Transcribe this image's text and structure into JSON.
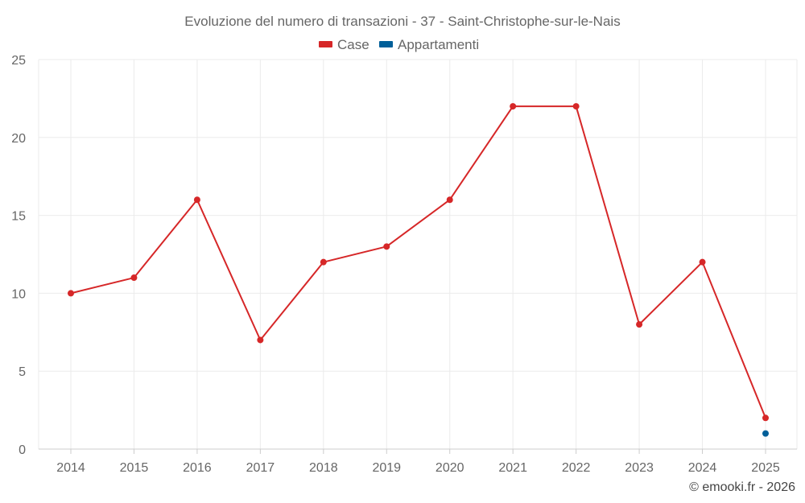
{
  "chart_data": {
    "type": "line",
    "title": "Evoluzione del numero di transazioni - 37 - Saint-Christophe-sur-le-Nais",
    "categories": [
      "2014",
      "2015",
      "2016",
      "2017",
      "2018",
      "2019",
      "2020",
      "2021",
      "2022",
      "2023",
      "2024",
      "2025"
    ],
    "series": [
      {
        "name": "Case",
        "color": "#d62728",
        "values": [
          10,
          11,
          16,
          7,
          12,
          13,
          16,
          22,
          22,
          8,
          12,
          2
        ]
      },
      {
        "name": "Appartamenti",
        "color": "#005f99",
        "values": [
          null,
          null,
          null,
          null,
          null,
          null,
          null,
          null,
          null,
          null,
          null,
          1
        ]
      }
    ],
    "ylim": [
      0,
      25
    ],
    "yticks": [
      0,
      5,
      10,
      15,
      20,
      25
    ],
    "grid": true,
    "legend": "top-center"
  },
  "credit": "© emooki.fr - 2026"
}
